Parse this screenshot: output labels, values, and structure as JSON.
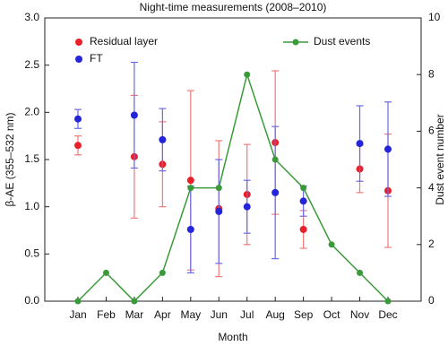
{
  "chart_data": {
    "type": "scatter",
    "title": "Night-time measurements (2008–2010)",
    "x_label": "Month",
    "y_label": "β-AE (355–532 nm)",
    "y2_label": "Dust event number",
    "categories": [
      "Jan",
      "Feb",
      "Mar",
      "Apr",
      "May",
      "Jun",
      "Jul",
      "Aug",
      "Sep",
      "Oct",
      "Nov",
      "Dec"
    ],
    "ylim": [
      0,
      3
    ],
    "yticks": [
      {
        "value": 0,
        "label": "0.0"
      },
      0.5,
      {
        "value": 1,
        "label": "1.0"
      },
      1.5,
      {
        "value": 2,
        "label": "2.0"
      },
      2.5,
      {
        "value": 3,
        "label": "3.0"
      }
    ],
    "y2lim": [
      0,
      10
    ],
    "y2ticks": [
      0,
      2,
      4,
      6,
      8,
      10
    ],
    "series": [
      {
        "name": "Residual layer",
        "type": "errorbar",
        "color": "#e8202a",
        "error_color": "#f07a7a",
        "values": [
          1.65,
          null,
          1.53,
          1.45,
          1.28,
          0.98,
          1.13,
          1.68,
          0.76,
          null,
          1.4,
          1.17
        ],
        "errors": [
          0.1,
          null,
          0.65,
          0.45,
          0.95,
          0.72,
          0.53,
          0.76,
          0.2,
          null,
          0.25,
          0.6
        ]
      },
      {
        "name": "FT",
        "type": "errorbar",
        "color": "#2424d8",
        "error_color": "#6a6ae6",
        "values": [
          1.93,
          null,
          1.97,
          1.71,
          0.76,
          0.95,
          1.0,
          1.15,
          1.06,
          null,
          1.67,
          1.61
        ],
        "errors": [
          0.1,
          null,
          0.56,
          0.33,
          0.46,
          0.55,
          0.28,
          0.7,
          0.16,
          null,
          0.4,
          0.5
        ]
      },
      {
        "name": "Dust events",
        "type": "line",
        "axis": "y2",
        "color": "#3a9a3a",
        "values": [
          0,
          1,
          0,
          1,
          4,
          4,
          8,
          5,
          4,
          2,
          1,
          0
        ]
      }
    ]
  }
}
